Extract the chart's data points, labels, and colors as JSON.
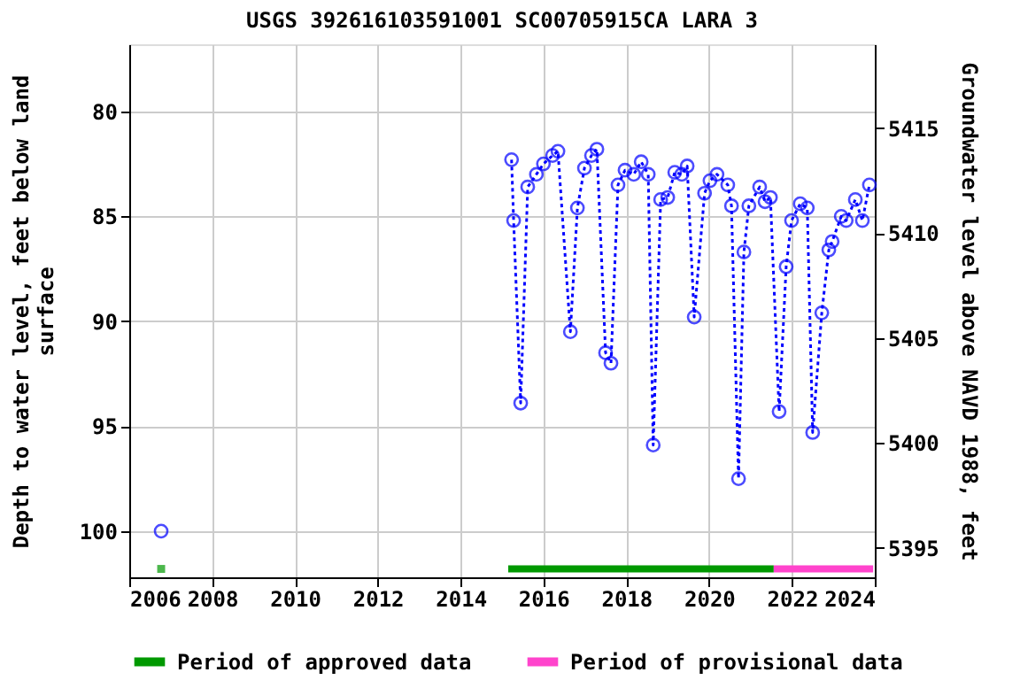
{
  "chart_data": {
    "type": "line",
    "title": "USGS 392616103591001 SC00705915CA LARA 3",
    "ylabel": "Depth to water level, feet below land surface",
    "y2label": "Groundwater level above NAVD 1988, feet",
    "series": [
      {
        "type": "scatter",
        "color": "#0000ff",
        "x": [
          2006.77
        ],
        "values": [
          100.0
        ]
      },
      {
        "color": "#0000ff",
        "line_style": "dotted",
        "marker": "circle",
        "x": [
          2015.23,
          2015.28,
          2015.45,
          2015.62,
          2015.83,
          2016.0,
          2016.22,
          2016.35,
          2016.65,
          2016.82,
          2016.99,
          2017.16,
          2017.29,
          2017.5,
          2017.63,
          2017.8,
          2017.97,
          2018.18,
          2018.36,
          2018.53,
          2018.65,
          2018.83,
          2019.0,
          2019.17,
          2019.34,
          2019.47,
          2019.64,
          2019.89,
          2020.02,
          2020.19,
          2020.45,
          2020.54,
          2020.71,
          2020.84,
          2020.96,
          2021.22,
          2021.35,
          2021.48,
          2021.69,
          2021.86,
          2021.99,
          2022.2,
          2022.37,
          2022.5,
          2022.72,
          2022.89,
          2022.97,
          2023.19,
          2023.31,
          2023.53,
          2023.7,
          2023.87
        ],
        "values": [
          82.3,
          85.2,
          93.9,
          83.6,
          83.0,
          82.5,
          82.1,
          81.9,
          90.5,
          84.6,
          82.7,
          82.1,
          81.8,
          91.5,
          92.0,
          83.5,
          82.8,
          83.0,
          82.4,
          83.0,
          95.9,
          84.2,
          84.1,
          82.9,
          83.0,
          82.6,
          89.8,
          83.9,
          83.3,
          83.0,
          83.5,
          84.5,
          97.5,
          86.7,
          84.5,
          83.6,
          84.3,
          84.1,
          94.3,
          87.4,
          85.2,
          84.4,
          84.6,
          95.3,
          89.6,
          86.6,
          86.2,
          85.0,
          85.2,
          84.2,
          85.2,
          83.5
        ]
      },
      {
        "type": "scatter",
        "color": "#009900",
        "marker": "square",
        "x": [
          2006.77
        ],
        "values": [
          101.8
        ]
      },
      {
        "name": "Period of approved data",
        "color": "#009900",
        "line_style": "solid",
        "marker": "none",
        "x": [
          2015.15,
          2021.56
        ],
        "values": [
          101.8,
          101.8
        ]
      },
      {
        "name": "Period of provisional data",
        "color": "#ff44cc",
        "line_style": "solid",
        "marker": "none",
        "x": [
          2021.56,
          2023.96
        ],
        "values": [
          101.8,
          101.8
        ]
      }
    ],
    "xlim": [
      2006,
      2024
    ],
    "xticks": [
      2006,
      2008,
      2010,
      2012,
      2014,
      2016,
      2018,
      2020,
      2022,
      2024
    ],
    "ylim": [
      102.2,
      76.8
    ],
    "yticks": [
      80,
      85,
      90,
      95,
      100
    ],
    "y2lim": [
      5393.6,
      5419.0
    ],
    "y2ticks": [
      5395,
      5400,
      5405,
      5410,
      5415
    ],
    "grid": true,
    "legend": "bottom"
  }
}
